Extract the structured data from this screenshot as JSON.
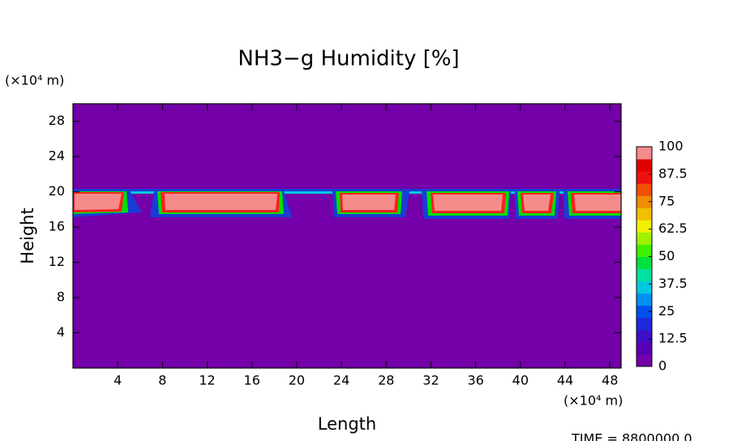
{
  "chart_data": {
    "type": "contour",
    "title": "NH3−g Humidity [%]",
    "x_label": "Length",
    "y_label": "Height",
    "x_unit": "(×10⁴ m)",
    "y_unit": "(×10⁴ m)",
    "annotation": "TIME = 8800000.0",
    "xlim": [
      0,
      49
    ],
    "xticks": [
      4,
      8,
      12,
      16,
      20,
      24,
      28,
      32,
      36,
      40,
      44,
      48
    ],
    "ylim": [
      0,
      30
    ],
    "yticks": [
      4,
      8,
      12,
      16,
      20,
      24,
      28
    ],
    "colorbar": {
      "lim": [
        0,
        100
      ],
      "ticks": [
        0,
        12.5,
        25,
        37.5,
        50,
        62.5,
        75,
        87.5,
        100
      ],
      "colors": [
        "#7300a8",
        "#5a00b4",
        "#3c10c8",
        "#1e28dc",
        "#0050f0",
        "#0090f0",
        "#00c8e0",
        "#00e0a0",
        "#00e040",
        "#40f000",
        "#a0f000",
        "#f0f000",
        "#f0c000",
        "#f08c00",
        "#f05000",
        "#f01010",
        "#e00000",
        "#f58c8c"
      ]
    }
  }
}
